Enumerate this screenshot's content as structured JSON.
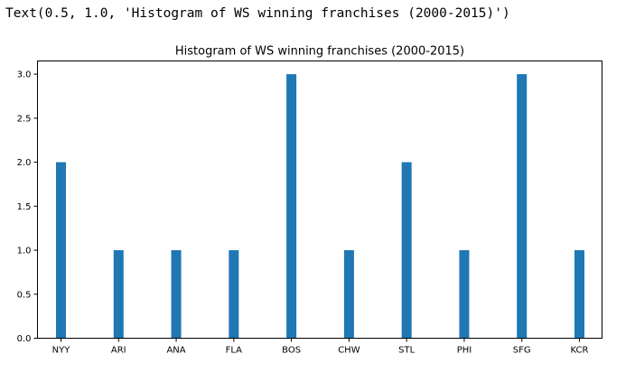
{
  "output": {
    "text": "Text(0.5, 1.0, 'Histogram of WS winning franchises (2000-2015)')"
  },
  "chart_data": {
    "type": "bar",
    "title": "Histogram of WS winning franchises (2000-2015)",
    "xlabel": "",
    "ylabel": "",
    "categories": [
      "NYY",
      "ARI",
      "ANA",
      "FLA",
      "BOS",
      "CHW",
      "STL",
      "PHI",
      "SFG",
      "KCR"
    ],
    "x_positions": [
      0,
      1,
      2,
      3,
      4,
      5,
      6,
      7,
      8,
      9
    ],
    "values": [
      2,
      1,
      1,
      1,
      3,
      1,
      2,
      1,
      3,
      1
    ],
    "yticks": [
      "0.0",
      "0.5",
      "1.0",
      "1.5",
      "2.0",
      "2.5",
      "3.0"
    ],
    "ylim": [
      0,
      3.15
    ],
    "grid": false,
    "bar_color": "#1f77b4"
  }
}
